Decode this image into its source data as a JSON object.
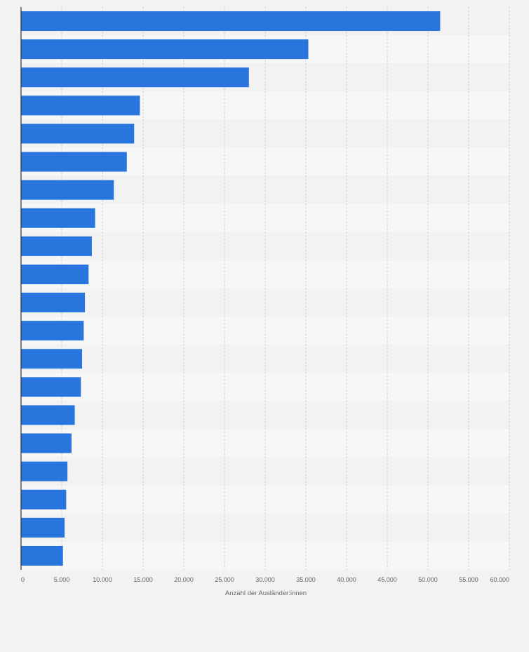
{
  "chart_data": {
    "type": "bar",
    "orientation": "horizontal",
    "title": "",
    "xlabel": "Anzahl der Ausländer:innen",
    "ylabel": "",
    "xlim": [
      0,
      60000
    ],
    "x_ticks": [
      0,
      5000,
      10000,
      15000,
      20000,
      25000,
      30000,
      35000,
      40000,
      45000,
      50000,
      55000,
      60000
    ],
    "x_tick_labels": [
      "0",
      "5.000",
      "10.000",
      "15.000",
      "20.000",
      "25.000",
      "30.000",
      "35.000",
      "40.000",
      "45.000",
      "50.000",
      "55.000",
      "60.000"
    ],
    "categories": [
      "",
      "",
      "",
      "",
      "",
      "",
      "",
      "",
      "",
      "",
      "",
      "",
      "",
      "",
      "",
      "",
      "",
      "",
      "",
      ""
    ],
    "values": [
      51500,
      35300,
      28000,
      14600,
      13900,
      13000,
      11400,
      9100,
      8700,
      8300,
      7850,
      7700,
      7500,
      7350,
      6600,
      6200,
      5700,
      5550,
      5350,
      5150
    ],
    "grid": true,
    "legend": "none",
    "colors": {
      "bar": "#2876dd",
      "background": "#f2f2f2",
      "band_dark": "#f2f2f2",
      "band_light": "#f7f7f7",
      "grid": "#d3d3d3",
      "axis": "#333333",
      "tick_text": "#666666"
    }
  }
}
